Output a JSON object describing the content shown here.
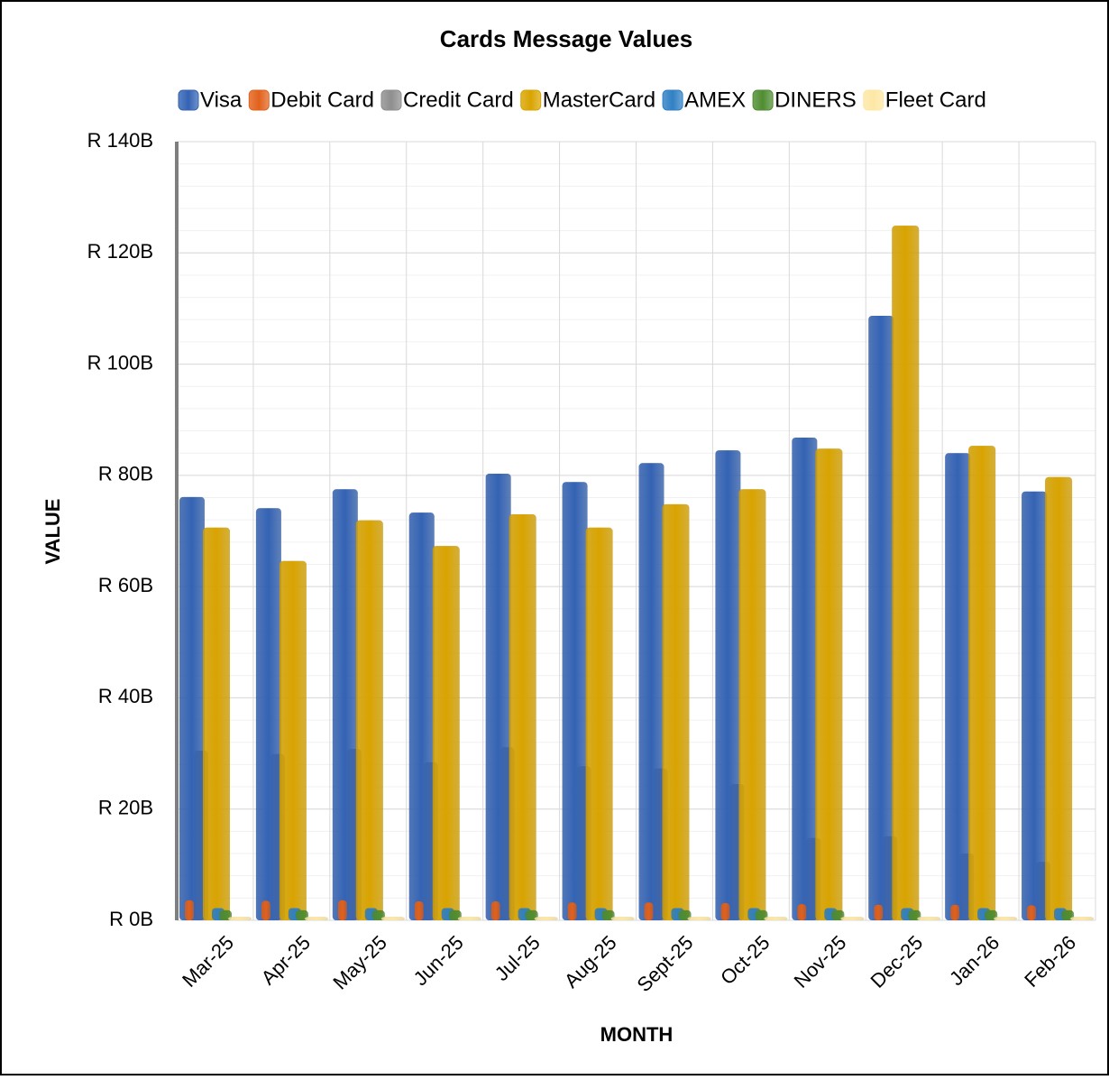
{
  "chart_data": {
    "type": "bar",
    "title": "Cards Message Values",
    "x_label": "MONTH",
    "y_label": "VALUE",
    "categories": [
      "Mar-25",
      "Apr-25",
      "May-25",
      "Jun-25",
      "Jul-25",
      "Aug-25",
      "Sept-25",
      "Oct-25",
      "Nov-25",
      "Dec-25",
      "Jan-26",
      "Feb-26"
    ],
    "series": [
      {
        "name": "Visa",
        "color": "#3463b4",
        "values": [
          76100000000,
          74100000000,
          77500000000,
          73300000000,
          80300000000,
          78800000000,
          82200000000,
          84500000000,
          86800000000,
          108700000000,
          84000000000,
          77100000000
        ]
      },
      {
        "name": "Debit Card",
        "color": "#e2611b",
        "values": [
          3600000000,
          3500000000,
          3600000000,
          3400000000,
          3400000000,
          3200000000,
          3200000000,
          3100000000,
          2900000000,
          2800000000,
          2800000000,
          2700000000
        ]
      },
      {
        "name": "Credit Card",
        "color": "#8e8e8e",
        "values": [
          30500000000,
          29900000000,
          30800000000,
          28400000000,
          31100000000,
          27700000000,
          27300000000,
          24500000000,
          14800000000,
          15100000000,
          12000000000,
          10500000000
        ]
      },
      {
        "name": "MasterCard",
        "color": "#d9a400",
        "values": [
          70600000000,
          64600000000,
          71900000000,
          67300000000,
          73000000000,
          70600000000,
          74800000000,
          77500000000,
          84800000000,
          124900000000,
          85300000000,
          79700000000
        ]
      },
      {
        "name": "AMEX",
        "color": "#2f80c4",
        "values": [
          2200000000,
          2200000000,
          2200000000,
          2200000000,
          2200000000,
          2200000000,
          2200000000,
          2200000000,
          2200000000,
          2200000000,
          2200000000,
          2200000000
        ]
      },
      {
        "name": "DINERS",
        "color": "#4f8d31",
        "values": [
          1800000000,
          1800000000,
          1800000000,
          1800000000,
          1800000000,
          1800000000,
          1800000000,
          1800000000,
          1800000000,
          1800000000,
          1800000000,
          1800000000
        ]
      },
      {
        "name": "Fleet Card",
        "color": "#fde7a4",
        "values": [
          600000000,
          600000000,
          600000000,
          600000000,
          600000000,
          600000000,
          600000000,
          600000000,
          600000000,
          600000000,
          600000000,
          600000000
        ]
      }
    ],
    "ylim": [
      0,
      140000000000
    ],
    "yticks": [
      {
        "value": 0,
        "label": "R 0B"
      },
      {
        "value": 20000000000,
        "label": "R 20B"
      },
      {
        "value": 40000000000,
        "label": "R 40B"
      },
      {
        "value": 60000000000,
        "label": "R 60B"
      },
      {
        "value": 80000000000,
        "label": "R 80B"
      },
      {
        "value": 100000000000,
        "label": "R 100B"
      },
      {
        "value": 120000000000,
        "label": "R 120B"
      },
      {
        "value": 140000000000,
        "label": "R 140B"
      }
    ],
    "grid": true,
    "legend": "top"
  }
}
